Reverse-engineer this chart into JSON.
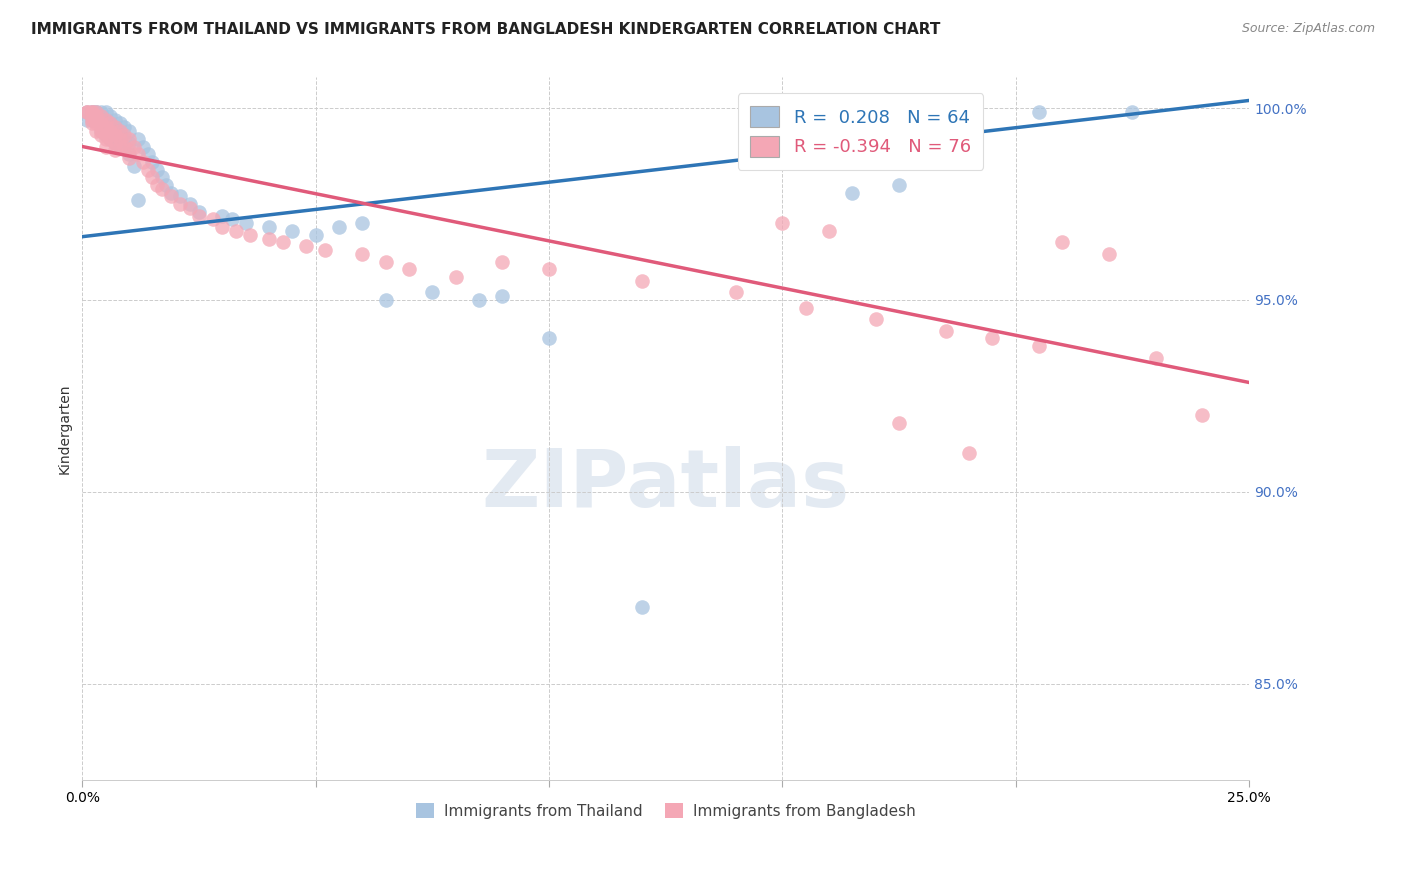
{
  "title": "IMMIGRANTS FROM THAILAND VS IMMIGRANTS FROM BANGLADESH KINDERGARTEN CORRELATION CHART",
  "source": "Source: ZipAtlas.com",
  "ylabel": "Kindergarten",
  "yticks": [
    0.85,
    0.9,
    0.95,
    1.0
  ],
  "ytick_labels": [
    "85.0%",
    "90.0%",
    "95.0%",
    "100.0%"
  ],
  "xmin": 0.0,
  "xmax": 0.25,
  "ymin": 0.825,
  "ymax": 1.008,
  "legend_blue_R": "0.208",
  "legend_blue_N": "64",
  "legend_pink_R": "-0.394",
  "legend_pink_N": "76",
  "blue_color": "#a8c4e0",
  "pink_color": "#f4a7b5",
  "line_blue_color": "#2e75b6",
  "line_pink_color": "#e05a7a",
  "legend_blue_label": "Immigrants from Thailand",
  "legend_pink_label": "Immigrants from Bangladesh",
  "watermark_text": "ZIPatlas",
  "blue_line": [
    0.0,
    0.9665,
    0.25,
    1.002
  ],
  "pink_line": [
    0.0,
    0.99,
    0.25,
    0.9285
  ],
  "blue_scatter": [
    [
      0.001,
      0.999
    ],
    [
      0.001,
      0.997
    ],
    [
      0.002,
      0.999
    ],
    [
      0.002,
      0.997
    ],
    [
      0.002,
      0.999
    ],
    [
      0.003,
      0.999
    ],
    [
      0.003,
      0.999
    ],
    [
      0.003,
      0.998
    ],
    [
      0.003,
      0.997
    ],
    [
      0.004,
      0.999
    ],
    [
      0.004,
      0.998
    ],
    [
      0.004,
      0.996
    ],
    [
      0.004,
      0.994
    ],
    [
      0.005,
      0.999
    ],
    [
      0.005,
      0.997
    ],
    [
      0.005,
      0.995
    ],
    [
      0.005,
      0.993
    ],
    [
      0.006,
      0.998
    ],
    [
      0.006,
      0.996
    ],
    [
      0.006,
      0.994
    ],
    [
      0.006,
      0.992
    ],
    [
      0.007,
      0.997
    ],
    [
      0.007,
      0.995
    ],
    [
      0.007,
      0.993
    ],
    [
      0.007,
      0.991
    ],
    [
      0.008,
      0.996
    ],
    [
      0.008,
      0.993
    ],
    [
      0.008,
      0.99
    ],
    [
      0.009,
      0.995
    ],
    [
      0.009,
      0.992
    ],
    [
      0.01,
      0.994
    ],
    [
      0.01,
      0.991
    ],
    [
      0.01,
      0.988
    ],
    [
      0.011,
      0.985
    ],
    [
      0.012,
      0.992
    ],
    [
      0.012,
      0.976
    ],
    [
      0.013,
      0.99
    ],
    [
      0.014,
      0.988
    ],
    [
      0.015,
      0.986
    ],
    [
      0.016,
      0.984
    ],
    [
      0.017,
      0.982
    ],
    [
      0.018,
      0.98
    ],
    [
      0.019,
      0.978
    ],
    [
      0.021,
      0.977
    ],
    [
      0.023,
      0.975
    ],
    [
      0.025,
      0.973
    ],
    [
      0.03,
      0.972
    ],
    [
      0.032,
      0.971
    ],
    [
      0.035,
      0.97
    ],
    [
      0.04,
      0.969
    ],
    [
      0.045,
      0.968
    ],
    [
      0.05,
      0.967
    ],
    [
      0.055,
      0.969
    ],
    [
      0.06,
      0.97
    ],
    [
      0.065,
      0.95
    ],
    [
      0.075,
      0.952
    ],
    [
      0.085,
      0.95
    ],
    [
      0.09,
      0.951
    ],
    [
      0.1,
      0.94
    ],
    [
      0.12,
      0.87
    ],
    [
      0.165,
      0.978
    ],
    [
      0.175,
      0.98
    ],
    [
      0.205,
      0.999
    ],
    [
      0.225,
      0.999
    ]
  ],
  "pink_scatter": [
    [
      0.001,
      0.999
    ],
    [
      0.001,
      0.999
    ],
    [
      0.002,
      0.999
    ],
    [
      0.002,
      0.999
    ],
    [
      0.002,
      0.998
    ],
    [
      0.002,
      0.997
    ],
    [
      0.002,
      0.996
    ],
    [
      0.003,
      0.999
    ],
    [
      0.003,
      0.998
    ],
    [
      0.003,
      0.997
    ],
    [
      0.003,
      0.996
    ],
    [
      0.003,
      0.994
    ],
    [
      0.004,
      0.998
    ],
    [
      0.004,
      0.996
    ],
    [
      0.004,
      0.994
    ],
    [
      0.004,
      0.993
    ],
    [
      0.005,
      0.997
    ],
    [
      0.005,
      0.995
    ],
    [
      0.005,
      0.993
    ],
    [
      0.005,
      0.992
    ],
    [
      0.005,
      0.99
    ],
    [
      0.006,
      0.996
    ],
    [
      0.006,
      0.994
    ],
    [
      0.006,
      0.992
    ],
    [
      0.007,
      0.995
    ],
    [
      0.007,
      0.993
    ],
    [
      0.007,
      0.991
    ],
    [
      0.007,
      0.989
    ],
    [
      0.008,
      0.994
    ],
    [
      0.008,
      0.992
    ],
    [
      0.008,
      0.99
    ],
    [
      0.009,
      0.993
    ],
    [
      0.009,
      0.99
    ],
    [
      0.01,
      0.992
    ],
    [
      0.01,
      0.989
    ],
    [
      0.01,
      0.987
    ],
    [
      0.011,
      0.99
    ],
    [
      0.012,
      0.988
    ],
    [
      0.013,
      0.986
    ],
    [
      0.014,
      0.984
    ],
    [
      0.015,
      0.982
    ],
    [
      0.016,
      0.98
    ],
    [
      0.017,
      0.979
    ],
    [
      0.019,
      0.977
    ],
    [
      0.021,
      0.975
    ],
    [
      0.023,
      0.974
    ],
    [
      0.025,
      0.972
    ],
    [
      0.028,
      0.971
    ],
    [
      0.03,
      0.969
    ],
    [
      0.033,
      0.968
    ],
    [
      0.036,
      0.967
    ],
    [
      0.04,
      0.966
    ],
    [
      0.043,
      0.965
    ],
    [
      0.048,
      0.964
    ],
    [
      0.052,
      0.963
    ],
    [
      0.06,
      0.962
    ],
    [
      0.065,
      0.96
    ],
    [
      0.07,
      0.958
    ],
    [
      0.08,
      0.956
    ],
    [
      0.09,
      0.96
    ],
    [
      0.1,
      0.958
    ],
    [
      0.12,
      0.955
    ],
    [
      0.14,
      0.952
    ],
    [
      0.155,
      0.948
    ],
    [
      0.17,
      0.945
    ],
    [
      0.185,
      0.942
    ],
    [
      0.195,
      0.94
    ],
    [
      0.205,
      0.938
    ],
    [
      0.175,
      0.918
    ],
    [
      0.19,
      0.91
    ],
    [
      0.15,
      0.97
    ],
    [
      0.16,
      0.968
    ],
    [
      0.21,
      0.965
    ],
    [
      0.22,
      0.962
    ],
    [
      0.23,
      0.935
    ],
    [
      0.24,
      0.92
    ]
  ],
  "title_fontsize": 11,
  "source_fontsize": 9,
  "axis_label_fontsize": 10,
  "tick_fontsize": 10
}
